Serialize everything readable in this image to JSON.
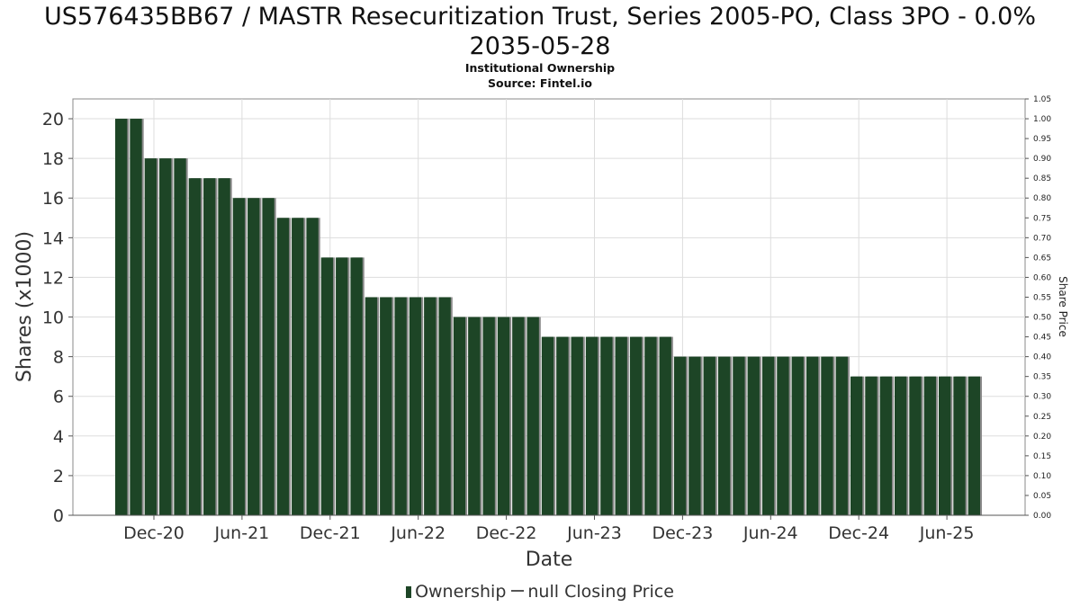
{
  "title_line1": "US576435BB67 / MASTR Resecuritization Trust, Series 2005-PO, Class 3PO - 0.0%",
  "title_line2": "2035-05-28",
  "subtitle_line1": "Institutional Ownership",
  "subtitle_line2": "Source: Fintel.io",
  "legend": {
    "ownership": "Ownership",
    "price": "null Closing Price"
  },
  "colors": {
    "bar": "#1d4526",
    "bar_shadow": "#8a8a8a",
    "grid": "#dddddd",
    "axis": "#555555"
  },
  "chart_data": {
    "type": "bar",
    "xlabel": "Date",
    "ylabel": "Shares (x1000)",
    "y2label": "Share Price",
    "ylim": [
      0,
      21
    ],
    "y2lim": [
      0,
      1.05
    ],
    "yticks": [
      "0",
      "2",
      "4",
      "6",
      "8",
      "10",
      "12",
      "14",
      "16",
      "18",
      "20"
    ],
    "y2ticks": [
      "0.00",
      "0.05",
      "0.10",
      "0.15",
      "0.20",
      "0.25",
      "0.30",
      "0.35",
      "0.40",
      "0.45",
      "0.50",
      "0.55",
      "0.60",
      "0.65",
      "0.70",
      "0.75",
      "0.80",
      "0.85",
      "0.90",
      "0.95",
      "1.00",
      "1.05"
    ],
    "xticks": [
      "Dec-20",
      "Jun-21",
      "Dec-21",
      "Jun-22",
      "Dec-22",
      "Jun-23",
      "Dec-23",
      "Jun-24",
      "Dec-24",
      "Jun-25"
    ],
    "grid": true,
    "legend_position": "bottom",
    "series": [
      {
        "name": "Ownership",
        "values": [
          20,
          20,
          18,
          18,
          18,
          17,
          17,
          17,
          16,
          16,
          16,
          15,
          15,
          15,
          13,
          13,
          13,
          11,
          11,
          11,
          11,
          11,
          11,
          10,
          10,
          10,
          10,
          10,
          10,
          9,
          9,
          9,
          9,
          9,
          9,
          9,
          9,
          9,
          8,
          8,
          8,
          8,
          8,
          8,
          8,
          8,
          8,
          8,
          8,
          8,
          7,
          7,
          7,
          7,
          7,
          7,
          7,
          7,
          7
        ]
      }
    ]
  }
}
